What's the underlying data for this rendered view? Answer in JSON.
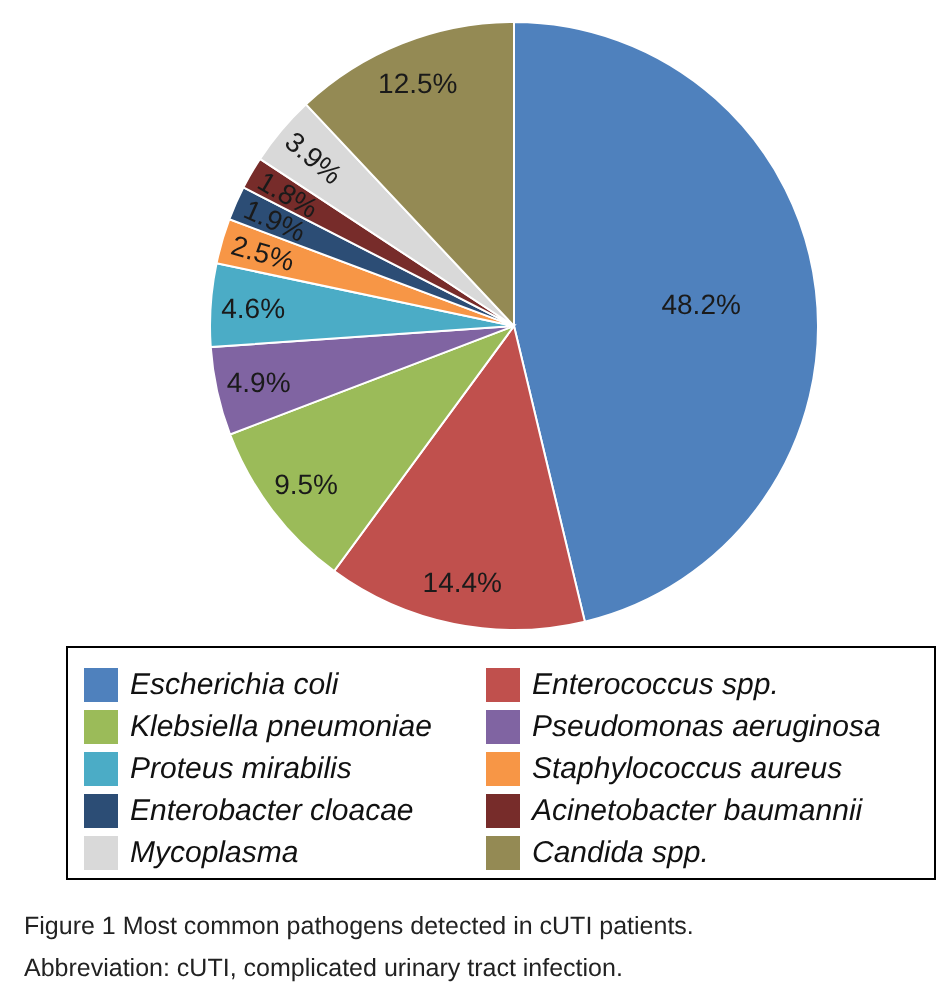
{
  "chart_data": {
    "type": "pie",
    "categories": [
      "Escherichia coli",
      "Enterococcus spp.",
      "Klebsiella pneumoniae",
      "Pseudomonas aeruginosa",
      "Proteus mirabilis",
      "Staphylococcus aureus",
      "Enterobacter cloacae",
      "Acinetobacter baumannii",
      "Mycoplasma",
      "Candida spp."
    ],
    "values": [
      48.2,
      14.4,
      9.5,
      4.9,
      4.6,
      2.5,
      1.9,
      1.8,
      3.9,
      12.5
    ],
    "colors": [
      "#4f81bd",
      "#c0504d",
      "#9bbb59",
      "#8064a2",
      "#4bacc6",
      "#f79646",
      "#2c4d75",
      "#772c2a",
      "#d9d9d9",
      "#948a54"
    ],
    "value_labels": [
      "48.2%",
      "14.4%",
      "9.5%",
      "4.9%",
      "4.6%",
      "2.5%",
      "1.9%",
      "1.8%",
      "3.9%",
      "12.5%"
    ],
    "legend": "bottom",
    "annotations": [
      "Figure 1 Most common pathogens detected in cUTI patients.",
      "Abbreviation: cUTI, complicated urinary tract infection."
    ]
  }
}
